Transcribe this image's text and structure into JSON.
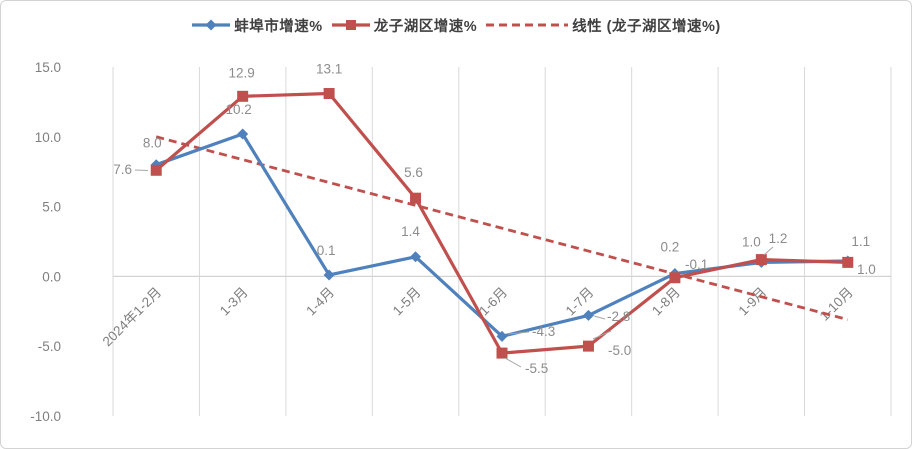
{
  "chart_data": {
    "type": "line",
    "title": "",
    "categories": [
      "2024年1-2月",
      "1-3月",
      "1-4月",
      "1-5月",
      "1-6月",
      "1-7月",
      "1-8月",
      "1-9月",
      "1-10月"
    ],
    "series": [
      {
        "name": "蚌埠市增速%",
        "color": "#4F81BD",
        "marker": "diamond",
        "values": [
          8.0,
          10.2,
          0.1,
          1.4,
          -4.3,
          -2.8,
          0.2,
          1.0,
          1.1
        ]
      },
      {
        "name": "龙子湖区增速%",
        "color": "#C0504D",
        "marker": "square",
        "values": [
          7.6,
          12.9,
          13.1,
          5.6,
          -5.5,
          -5.0,
          -0.1,
          1.2,
          1.0
        ]
      }
    ],
    "trendline": {
      "name": "线性 (龙子湖区增速%)",
      "color": "#C0504D",
      "style": "dashed",
      "basis_series": "龙子湖区增速%",
      "start_value": 10.0,
      "end_value": -3.1
    },
    "y_axis": {
      "min": -10,
      "max": 15,
      "step": 5,
      "tick_labels": [
        "15.0",
        "10.0",
        "5.0",
        "0.0",
        "-5.0",
        "-10.0"
      ]
    },
    "x_axis": {
      "label_rotation_deg": 45
    },
    "legend": {
      "position": "top"
    },
    "grid": {
      "vertical": true,
      "horizontal": false
    },
    "data_label_decimals": 1,
    "colors": {
      "gridline": "#d9d9d9",
      "axis_line": "#d3d3d3",
      "axis_text": "#7f7f7f",
      "data_label_text": "#8c8c8c",
      "leader_line": "#a6a6a6"
    }
  }
}
